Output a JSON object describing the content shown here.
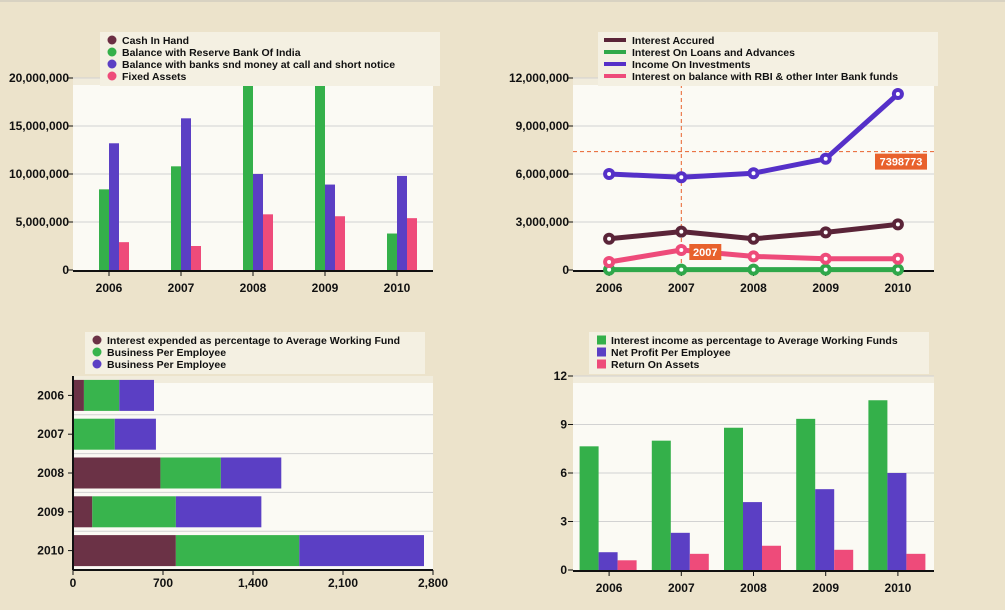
{
  "chart_data": [
    {
      "type": "bar",
      "categories": [
        "2006",
        "2007",
        "2008",
        "2009",
        "2010"
      ],
      "ylim": [
        0,
        20000000
      ],
      "yticks": [
        "0",
        "5,000,000",
        "10,000,000",
        "15,000,000",
        "20,000,000"
      ],
      "legend_position": "top",
      "grid": true,
      "series": [
        {
          "name": "Cash In Hand",
          "color": "#6b2e43",
          "values": [
            0,
            0,
            0,
            0,
            0
          ]
        },
        {
          "name": "Balance with Reserve Bank Of India",
          "color": "#34b04a",
          "values": [
            8400000,
            10800000,
            19800000,
            19800000,
            3800000
          ]
        },
        {
          "name": "Balance with banks snd money at call and short notice",
          "color": "#5b3fc4",
          "values": [
            13200000,
            15800000,
            10000000,
            8900000,
            9800000
          ]
        },
        {
          "name": "Fixed Assets",
          "color": "#ee4b7a",
          "values": [
            2900000,
            2500000,
            5800000,
            5600000,
            5400000
          ]
        }
      ]
    },
    {
      "type": "line",
      "categories": [
        "2006",
        "2007",
        "2008",
        "2009",
        "2010"
      ],
      "ylim": [
        0,
        12000000
      ],
      "yticks": [
        "0",
        "3,000,000",
        "6,000,000",
        "9,000,000",
        "12,000,000"
      ],
      "legend_position": "top",
      "grid": true,
      "series": [
        {
          "name": "Interest Accured",
          "color": "#5a2438",
          "values": [
            1950000,
            2400000,
            1950000,
            2350000,
            2850000
          ]
        },
        {
          "name": "Interest On Loans and Advances",
          "color": "#2fa84a",
          "values": [
            20000,
            20000,
            20000,
            20000,
            20000
          ]
        },
        {
          "name": "Income On Investments",
          "color": "#5530c8",
          "values": [
            6000000,
            5800000,
            6050000,
            6950000,
            11000000
          ]
        },
        {
          "name": "Interest on balance with RBI & other Inter Bank funds",
          "color": "#ee4b7a",
          "values": [
            500000,
            1250000,
            850000,
            700000,
            700000
          ]
        }
      ],
      "crosshair": {
        "x_label": "2007",
        "y_label": "7398773",
        "y_value": 7398773
      }
    },
    {
      "type": "bar",
      "orientation": "horizontal",
      "stacked": true,
      "categories": [
        "2006",
        "2007",
        "2008",
        "2009",
        "2010"
      ],
      "xlim": [
        0,
        2800
      ],
      "xticks": [
        "0",
        "700",
        "1,400",
        "2,100",
        "2,800"
      ],
      "legend_position": "top",
      "series": [
        {
          "name": "Interest expended as percentage to Average Working Fund",
          "color": "#6b3246",
          "values": [
            85,
            0,
            680,
            150,
            800
          ]
        },
        {
          "name": "Business Per Employee",
          "color": "#38b44d",
          "values": [
            275,
            325,
            470,
            650,
            960
          ]
        },
        {
          "name": "Business Per Employee",
          "color": "#5b3fc4",
          "values": [
            270,
            320,
            470,
            665,
            970
          ]
        }
      ]
    },
    {
      "type": "bar",
      "categories": [
        "2006",
        "2007",
        "2008",
        "2009",
        "2010"
      ],
      "ylim": [
        0,
        12
      ],
      "yticks": [
        "0",
        "3",
        "6",
        "9",
        "12"
      ],
      "legend_position": "top",
      "grid": true,
      "series": [
        {
          "name": "Interest income as percentage to Average Working Funds",
          "color": "#34b04a",
          "values": [
            7.65,
            8.0,
            8.8,
            9.35,
            10.5
          ]
        },
        {
          "name": "Net Profit Per Employee",
          "color": "#5b3fc4",
          "values": [
            1.1,
            2.3,
            4.2,
            5.0,
            6.0
          ]
        },
        {
          "name": "Return On Assets",
          "color": "#ee4b7a",
          "values": [
            0.6,
            1.0,
            1.5,
            1.25,
            1.0
          ]
        }
      ]
    }
  ]
}
